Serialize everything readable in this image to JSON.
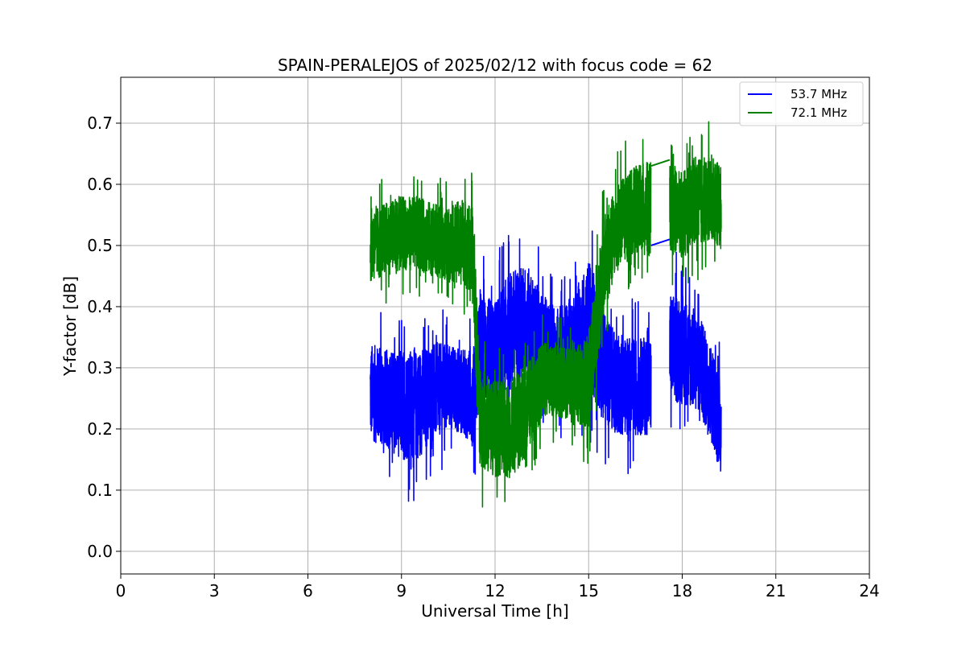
{
  "chart_data": {
    "type": "line",
    "title": "SPAIN-PERALEJOS of 2025/02/12 with focus code = 62",
    "xlabel": "Universal Time [h]",
    "ylabel": "Y-factor [dB]",
    "xlim": [
      0,
      24
    ],
    "ylim": [
      -0.037,
      0.775
    ],
    "xticks": [
      0,
      3,
      6,
      9,
      12,
      15,
      18,
      21,
      24
    ],
    "yticks": [
      0.0,
      0.1,
      0.2,
      0.3,
      0.4,
      0.5,
      0.6,
      0.7
    ],
    "xtick_labels": [
      "0",
      "3",
      "6",
      "9",
      "12",
      "15",
      "18",
      "21",
      "24"
    ],
    "ytick_labels": [
      "0.0",
      "0.1",
      "0.2",
      "0.3",
      "0.4",
      "0.5",
      "0.6",
      "0.7"
    ],
    "grid": true,
    "legend_position": "top-right",
    "series": [
      {
        "name": "53.7 MHz",
        "color": "#0000ff",
        "segments": [
          {
            "x": [
              8.0,
              8.5,
              9.0,
              9.5,
              10.0,
              10.5,
              11.0,
              11.3,
              11.5,
              12.0,
              12.5,
              13.0,
              13.5,
              14.0,
              14.5,
              15.0,
              15.5,
              16.0,
              16.5,
              17.0
            ],
            "mid": [
              0.26,
              0.25,
              0.24,
              0.24,
              0.26,
              0.27,
              0.26,
              0.25,
              0.33,
              0.32,
              0.36,
              0.37,
              0.34,
              0.32,
              0.33,
              0.37,
              0.3,
              0.27,
              0.27,
              0.27
            ],
            "amp": [
              0.08,
              0.08,
              0.09,
              0.09,
              0.08,
              0.07,
              0.07,
              0.08,
              0.09,
              0.09,
              0.1,
              0.1,
              0.08,
              0.08,
              0.08,
              0.11,
              0.09,
              0.08,
              0.08,
              0.08
            ]
          },
          {
            "x": [
              17.6,
              18.0,
              18.5,
              19.0,
              19.25
            ],
            "mid": [
              0.33,
              0.33,
              0.31,
              0.25,
              0.2
            ],
            "amp": [
              0.09,
              0.09,
              0.08,
              0.08,
              0.08
            ]
          }
        ],
        "connector": [
          [
            17.0,
            0.5
          ],
          [
            17.6,
            0.51
          ]
        ]
      },
      {
        "name": "72.1 MHz",
        "color": "#008000",
        "segments": [
          {
            "x": [
              8.0,
              8.5,
              9.0,
              9.5,
              10.0,
              10.5,
              11.0,
              11.3,
              11.5,
              12.0,
              12.5,
              13.0,
              13.5,
              14.0,
              14.5,
              15.0,
              15.5,
              16.0,
              16.5,
              17.0
            ],
            "mid": [
              0.5,
              0.51,
              0.52,
              0.52,
              0.51,
              0.5,
              0.51,
              0.48,
              0.22,
              0.2,
              0.2,
              0.23,
              0.28,
              0.28,
              0.27,
              0.28,
              0.47,
              0.54,
              0.56,
              0.56
            ],
            "amp": [
              0.06,
              0.06,
              0.06,
              0.06,
              0.06,
              0.06,
              0.07,
              0.08,
              0.08,
              0.08,
              0.08,
              0.08,
              0.06,
              0.06,
              0.06,
              0.08,
              0.08,
              0.07,
              0.07,
              0.08
            ]
          },
          {
            "x": [
              17.6,
              18.0,
              18.5,
              19.0,
              19.25
            ],
            "mid": [
              0.56,
              0.55,
              0.57,
              0.58,
              0.56
            ],
            "amp": [
              0.07,
              0.07,
              0.07,
              0.07,
              0.07
            ]
          }
        ],
        "connector": [
          [
            17.0,
            0.63
          ],
          [
            17.6,
            0.64
          ]
        ]
      }
    ]
  }
}
